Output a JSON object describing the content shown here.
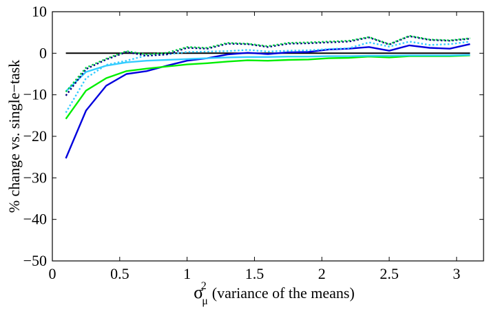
{
  "chart_data": {
    "type": "line",
    "title": "",
    "xlabel": {
      "symbol": "σ",
      "subscript": "μ",
      "superscript": "2",
      "text": "(variance of the means)"
    },
    "ylabel": "% change vs. single−task",
    "xlim": [
      0,
      3.2
    ],
    "ylim": [
      -50,
      10
    ],
    "xticks": [
      0,
      0.5,
      1,
      1.5,
      2,
      2.5,
      3
    ],
    "xtick_labels": [
      "0",
      "0.5",
      "1",
      "1.5",
      "2",
      "2.5",
      "3"
    ],
    "yticks": [
      -50,
      -40,
      -30,
      -20,
      -10,
      0,
      10
    ],
    "ytick_labels": [
      "−50",
      "−40",
      "−30",
      "−20",
      "−10",
      "0",
      "10"
    ],
    "grid": false,
    "x": [
      0.1,
      0.25,
      0.4,
      0.55,
      0.7,
      0.85,
      1.0,
      1.15,
      1.3,
      1.45,
      1.6,
      1.75,
      1.9,
      2.05,
      2.2,
      2.35,
      2.5,
      2.65,
      2.8,
      2.95,
      3.1
    ],
    "series": [
      {
        "name": "zero-reference",
        "color": "#000000",
        "dash": "solid",
        "values": [
          0,
          0,
          0,
          0,
          0,
          0,
          0,
          0,
          0,
          0,
          0,
          0,
          0,
          0,
          0,
          0,
          0,
          0,
          0,
          0,
          0
        ]
      },
      {
        "name": "blue-solid",
        "color": "#0000dd",
        "dash": "solid",
        "values": [
          -25.3,
          -13.8,
          -7.8,
          -5.0,
          -4.3,
          -3.0,
          -1.8,
          -1.2,
          -0.3,
          0.1,
          -0.2,
          0.2,
          0.3,
          0.9,
          1.1,
          1.5,
          0.6,
          1.9,
          1.3,
          1.1,
          2.2
        ]
      },
      {
        "name": "green-solid",
        "color": "#00ee00",
        "dash": "solid",
        "values": [
          -15.8,
          -9.0,
          -6.0,
          -4.3,
          -3.7,
          -3.2,
          -2.7,
          -2.4,
          -2.0,
          -1.7,
          -1.8,
          -1.6,
          -1.5,
          -1.2,
          -1.1,
          -0.8,
          -1.0,
          -0.7,
          -0.7,
          -0.7,
          -0.5
        ]
      },
      {
        "name": "cyan-solid",
        "color": "#33ccff",
        "dash": "solid",
        "values": [
          -9.2,
          -4.5,
          -3.0,
          -2.2,
          -1.8,
          -1.6,
          -1.4,
          -1.2,
          -1.0,
          -0.9,
          -0.9,
          -0.8,
          -0.8,
          -0.7,
          -0.7,
          -0.6,
          -0.6,
          -0.5,
          -0.5,
          -0.5,
          -0.4
        ]
      },
      {
        "name": "cyan-dotted",
        "color": "#33ccff",
        "dash": "dotted",
        "values": [
          -14.3,
          -6.0,
          -2.8,
          -1.8,
          -0.5,
          -0.3,
          0.3,
          0.4,
          0.5,
          0.8,
          0.4,
          0.6,
          0.7,
          1.0,
          1.2,
          2.6,
          1.6,
          2.8,
          2.0,
          2.2,
          2.8
        ]
      },
      {
        "name": "navy-dotted",
        "color": "#000080",
        "dash": "dotted",
        "values": [
          -10.2,
          -3.8,
          -1.5,
          0.3,
          -0.6,
          -0.3,
          1.3,
          1.1,
          2.3,
          2.2,
          1.5,
          2.3,
          2.4,
          2.6,
          2.8,
          3.8,
          2.1,
          4.1,
          3.2,
          3.0,
          3.5
        ]
      },
      {
        "name": "green-dotted",
        "color": "#00cc44",
        "dash": "dotted",
        "values": [
          -9.3,
          -3.5,
          -1.3,
          0.5,
          -0.3,
          0.1,
          1.5,
          1.3,
          2.5,
          2.3,
          1.7,
          2.5,
          2.6,
          2.8,
          3.0,
          3.9,
          2.2,
          4.2,
          3.3,
          3.1,
          3.6
        ]
      }
    ]
  }
}
